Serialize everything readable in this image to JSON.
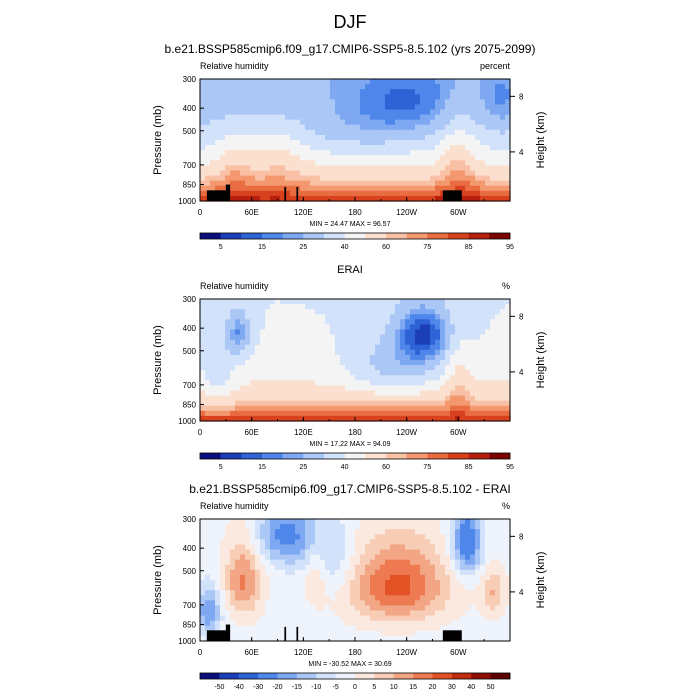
{
  "figure": {
    "title": "DJF"
  },
  "colors": {
    "seq_levels": [
      "#0a0f7d",
      "#1c3fb8",
      "#2e63d6",
      "#4f86ea",
      "#7ea8f1",
      "#aac7f6",
      "#d2e2fa",
      "#f4f4f4",
      "#fbe0cf",
      "#f8c0a4",
      "#f3986f",
      "#ea6d42",
      "#d8411e",
      "#b4200c",
      "#7a0500"
    ],
    "diff_levels": [
      "#0a0f7d",
      "#1c3fb8",
      "#2e63d6",
      "#4f86ea",
      "#7ea8f1",
      "#aac7f6",
      "#d2e2fa",
      "#eef3fc",
      "#fbe9df",
      "#f8cdb5",
      "#f3a685",
      "#ee7a52",
      "#e25224",
      "#c12b0e",
      "#8f0d03",
      "#5c0000"
    ],
    "terrain": "#000000"
  },
  "colorbars": {
    "seq": {
      "labels": [
        "5",
        "15",
        "25",
        "40",
        "60",
        "75",
        "85",
        "95"
      ]
    },
    "diff": {
      "labels": [
        "-50",
        "-40",
        "-30",
        "-20",
        "-15",
        "-10",
        "-5",
        "0",
        "5",
        "10",
        "15",
        "20",
        "30",
        "40",
        "50"
      ]
    }
  },
  "chart_data": [
    {
      "type": "heatmap",
      "title": "b.e21.BSSP585cmip6.f09_g17.CMIP6-SSP5-8.5.102 (yrs 2075-2099)",
      "left_label": "Relative humidity",
      "right_label": "percent",
      "xlabel": "",
      "ylabel": "Pressure (mb)",
      "y2label": "Height (km)",
      "x_ticks": [
        "0",
        "60E",
        "120E",
        "180",
        "120W",
        "60W"
      ],
      "y_ticks": [
        "300",
        "400",
        "500",
        "700",
        "850",
        "1000"
      ],
      "y2_ticks": [
        "8",
        "4"
      ],
      "stats": "MIN = 24.47  MAX = 96.57",
      "min": 24.47,
      "max": 96.57,
      "colorbar": "seq"
    },
    {
      "type": "heatmap",
      "title": "ERAI",
      "left_label": "Relative humidity",
      "right_label": "%",
      "xlabel": "",
      "ylabel": "Pressure (mb)",
      "y2label": "Height (km)",
      "x_ticks": [
        "0",
        "60E",
        "120E",
        "180",
        "120W",
        "60W"
      ],
      "y_ticks": [
        "300",
        "400",
        "500",
        "700",
        "850",
        "1000"
      ],
      "y2_ticks": [
        "8",
        "4"
      ],
      "stats": "MIN = 17.22  MAX = 94.09",
      "min": 17.22,
      "max": 94.09,
      "colorbar": "seq"
    },
    {
      "type": "heatmap",
      "title": "b.e21.BSSP585cmip6.f09_g17.CMIP6-SSP5-8.5.102 - ERAI",
      "left_label": "Relative humidity",
      "right_label": "%",
      "xlabel": "",
      "ylabel": "Pressure (mb)",
      "y2label": "Height (km)",
      "x_ticks": [
        "0",
        "60E",
        "120E",
        "180",
        "120W",
        "60W"
      ],
      "y_ticks": [
        "300",
        "400",
        "500",
        "700",
        "850",
        "1000"
      ],
      "y2_ticks": [
        "8",
        "4"
      ],
      "stats": "MIN = -30.52  MAX = 30.69",
      "min": -30.52,
      "max": 30.69,
      "colorbar": "diff"
    }
  ]
}
